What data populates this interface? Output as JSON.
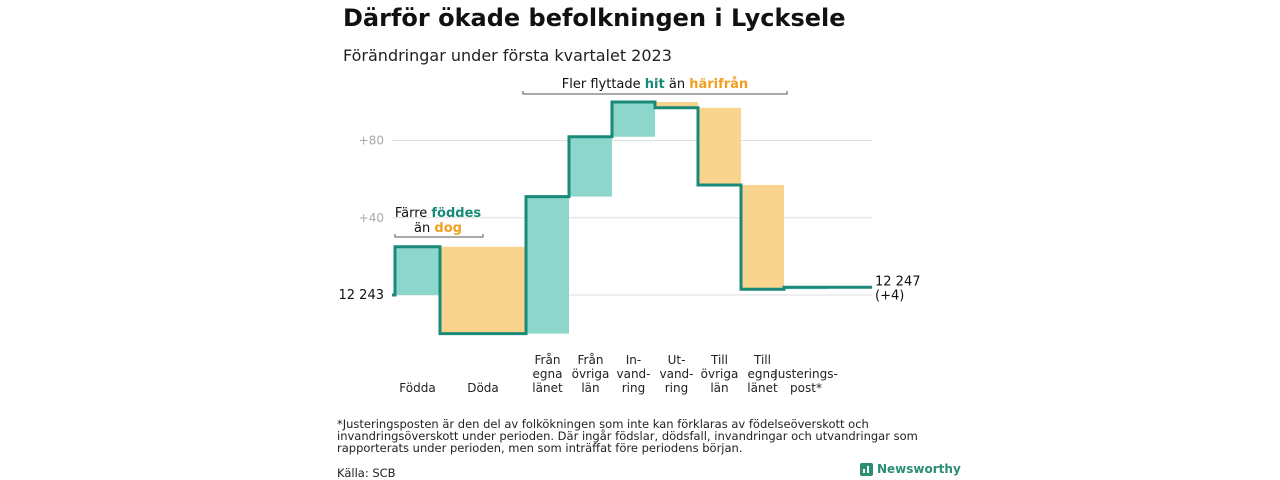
{
  "title": "Därför ökade befolkningen i Lycksele",
  "subtitle": "Förändringar under första kvartalet 2023",
  "footnote": "*Justeringsposten är den del av folkökningen som inte kan förklaras av födelseöverskott och invandringsöverskott under perioden. Där ingår födslar, dödsfall, invandringar och utvandringar som rapporterats under perioden, men som inträffat före periodens början.",
  "source": "Källa: SCB",
  "brand": "Newsworthy",
  "colors": {
    "increase": "#8dd6cb",
    "decrease": "#f8d48e",
    "line": "#1a8a78",
    "teal_text": "#1a8a78",
    "orange_text": "#f0a020"
  },
  "chart_data": {
    "type": "waterfall",
    "start_value": 12243,
    "start_label": "12 243",
    "end_label": "12 247",
    "end_change_label": "(+4)",
    "yticks": [
      {
        "value": 40,
        "label": "+40"
      },
      {
        "value": 80,
        "label": "+80"
      }
    ],
    "categories": [
      "Födda",
      "Döda",
      "Från egna länet",
      "Från övriga län",
      "In- vand- ring",
      "Ut- vand- ring",
      "Till övriga län",
      "Till egna länet",
      "Justerings- post*"
    ],
    "category_lines": [
      [
        "Födda"
      ],
      [
        "Döda"
      ],
      [
        "Från",
        "egna",
        "länet"
      ],
      [
        "Från",
        "övriga",
        "län"
      ],
      [
        "In-",
        "vand-",
        "ring"
      ],
      [
        "Ut-",
        "vand-",
        "ring"
      ],
      [
        "Till",
        "övriga",
        "län"
      ],
      [
        "Till",
        "egna",
        "länet"
      ],
      [
        "Justerings-",
        "post*"
      ]
    ],
    "changes": [
      25,
      -45,
      71,
      31,
      18,
      -3,
      -40,
      -54,
      1
    ],
    "annotations": [
      {
        "parts": [
          {
            "text": "Färre ",
            "color": "dark"
          },
          {
            "text": "föddes",
            "color": "teal"
          }
        ],
        "parts2": [
          {
            "text": "än ",
            "color": "dark"
          },
          {
            "text": "dog",
            "color": "orange"
          }
        ]
      },
      {
        "parts": [
          {
            "text": "Fler flyttade ",
            "color": "dark"
          },
          {
            "text": "hit",
            "color": "teal"
          },
          {
            "text": " än ",
            "color": "dark"
          },
          {
            "text": "härifrån",
            "color": "orange"
          }
        ]
      }
    ]
  }
}
